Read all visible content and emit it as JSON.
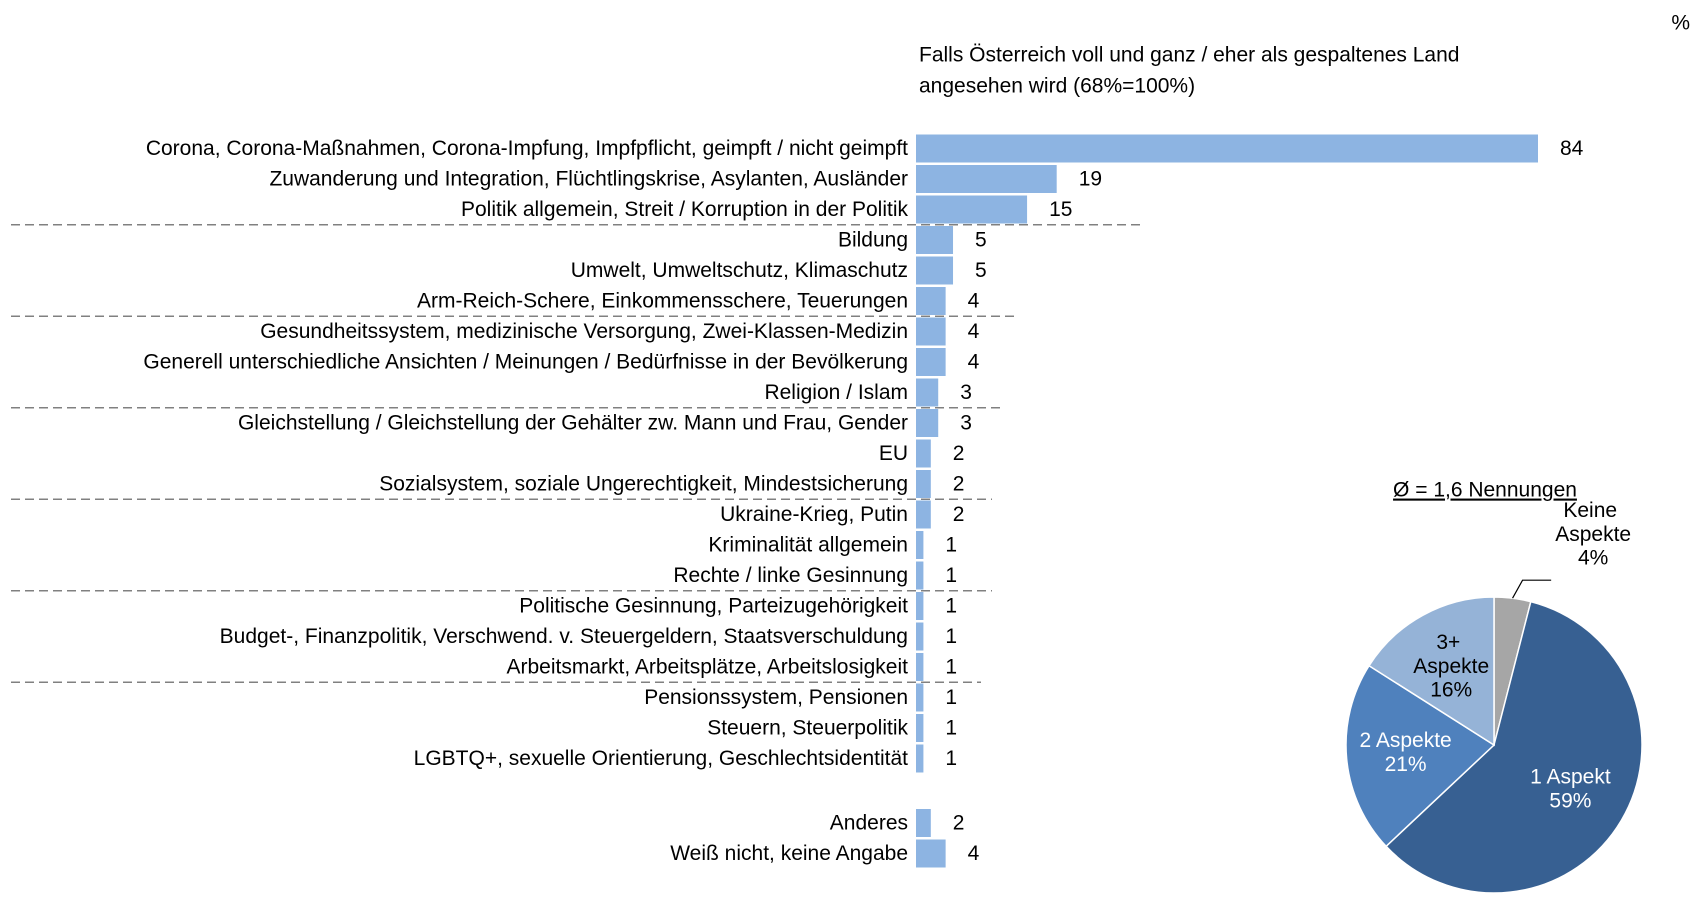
{
  "unit": "%",
  "chart_data": [
    {
      "type": "hbar",
      "subtitle": [
        "Falls Österreich voll und ganz / eher als gespaltenes Land",
        "angesehen wird (68%=100%)"
      ],
      "color": "#8db4e2",
      "categories": [
        "Corona, Corona-Maßnahmen, Corona-Impfung, Impfpflicht, geimpft / nicht geimpft",
        "Zuwanderung und Integration, Flüchtlingskrise, Asylanten, Ausländer",
        "Politik allgemein, Streit / Korruption in der Politik",
        "Bildung",
        "Umwelt, Umweltschutz, Klimaschutz",
        "Arm-Reich-Schere, Einkommensschere, Teuerungen",
        "Gesundheitssystem, medizinische Versorgung, Zwei-Klassen-Medizin",
        "Generell unterschiedliche Ansichten / Meinungen / Bedürfnisse in der Bevölkerung",
        "Religion / Islam",
        "Gleichstellung / Gleichstellung der Gehälter zw. Mann und Frau, Gender",
        "EU",
        "Sozialsystem, soziale Ungerechtigkeit, Mindestsicherung",
        "Ukraine-Krieg, Putin",
        "Kriminalität allgemein",
        "Rechte / linke Gesinnung",
        "Politische Gesinnung, Parteizugehörigkeit",
        "Budget-, Finanzpolitik, Verschwend. v. Steuergeldern, Staatsverschuldung",
        "Arbeitsmarkt, Arbeitsplätze, Arbeitslosigkeit",
        "Pensionssystem, Pensionen",
        "Steuern, Steuerpolitik",
        "LGBTQ+, sexuelle Orientierung, Geschlechtsidentität",
        "Anderes",
        "Weiß nicht, keine Angabe"
      ],
      "values": [
        84,
        19,
        15,
        5,
        5,
        4,
        4,
        4,
        3,
        3,
        2,
        2,
        2,
        1,
        1,
        1,
        1,
        1,
        1,
        1,
        1,
        2,
        4
      ]
    },
    {
      "type": "pie",
      "title": "Ø = 1,6 Nennungen",
      "categories": [
        "Keine Aspekte",
        "1 Aspekt",
        "2 Aspekte",
        "3+ Aspekte"
      ],
      "values": [
        4,
        59,
        21,
        16
      ],
      "value_labels": [
        "4%",
        "59%",
        "21%",
        "16%"
      ],
      "colors": [
        "#a6a6a6",
        "#376092",
        "#4f81bd",
        "#95b3d7"
      ]
    }
  ]
}
